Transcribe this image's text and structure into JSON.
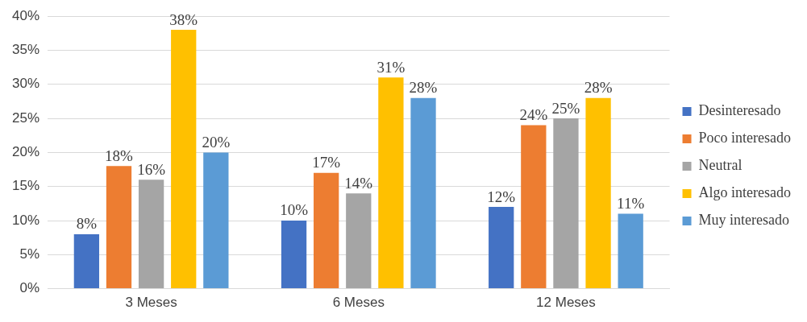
{
  "chart_data": {
    "type": "bar",
    "categories": [
      "3 Meses",
      "6 Meses",
      "12 Meses"
    ],
    "series": [
      {
        "name": "Desinteresado",
        "color": "#4472c4",
        "values": [
          8,
          10,
          12
        ],
        "value_labels": [
          "8%",
          "10%",
          "12%"
        ]
      },
      {
        "name": "Poco interesado",
        "color": "#ed7d31",
        "values": [
          18,
          17,
          24
        ],
        "value_labels": [
          "18%",
          "17%",
          "24%"
        ]
      },
      {
        "name": "Neutral",
        "color": "#a5a5a5",
        "values": [
          16,
          14,
          25
        ],
        "value_labels": [
          "16%",
          "14%",
          "25%"
        ]
      },
      {
        "name": "Algo interesado",
        "color": "#ffc000",
        "values": [
          38,
          31,
          28
        ],
        "value_labels": [
          "38%",
          "31%",
          "28%"
        ]
      },
      {
        "name": "Muy interesado",
        "color": "#5b9bd5",
        "values": [
          20,
          28,
          11
        ],
        "value_labels": [
          "20%",
          "28%",
          "11%"
        ]
      }
    ],
    "ylim": [
      0,
      40
    ],
    "yticks": [
      {
        "value": 0,
        "label": "0%"
      },
      {
        "value": 5,
        "label": "5%"
      },
      {
        "value": 10,
        "label": "10%"
      },
      {
        "value": 15,
        "label": "15%"
      },
      {
        "value": 20,
        "label": "20%"
      },
      {
        "value": 25,
        "label": "25%"
      },
      {
        "value": 30,
        "label": "30%"
      },
      {
        "value": 35,
        "label": "35%"
      },
      {
        "value": 40,
        "label": "40%"
      }
    ],
    "grid": "y",
    "legend": "right"
  }
}
